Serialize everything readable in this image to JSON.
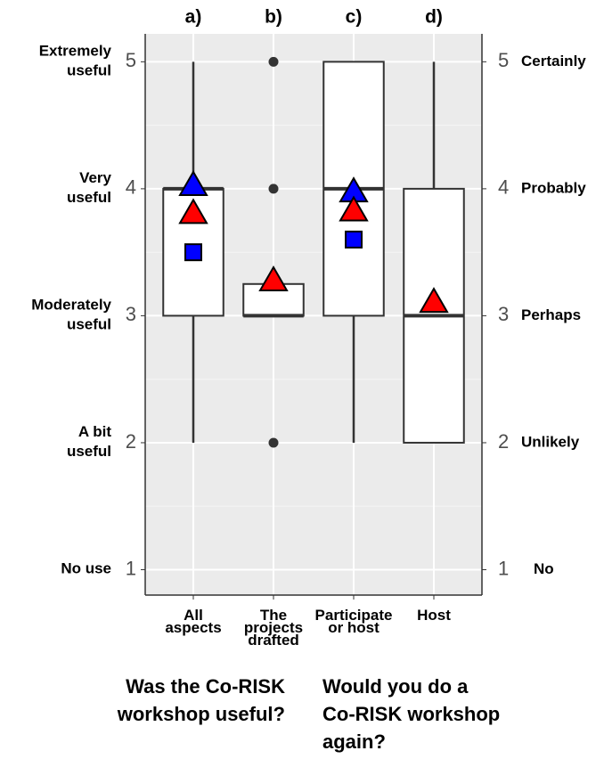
{
  "chart_data": {
    "type": "box",
    "panel_labels": [
      "a)",
      "b)",
      "c)",
      "d)"
    ],
    "categories": [
      [
        "All",
        "aspects"
      ],
      [
        "The",
        "projects",
        "drafted"
      ],
      [
        "Participate",
        "or host"
      ],
      [
        "Host"
      ]
    ],
    "boxes": [
      {
        "min": 2,
        "q1": 3,
        "median": 4,
        "q3": 4,
        "max": 5
      },
      {
        "min": 3,
        "q1": 3,
        "median": 3,
        "q3": 3.25,
        "max": 3.25
      },
      {
        "min": 2,
        "q1": 3,
        "median": 4,
        "q3": 5,
        "max": 5
      },
      {
        "min": 2,
        "q1": 2,
        "median": 3,
        "q3": 4,
        "max": 5
      }
    ],
    "outliers": [
      [],
      [
        5,
        4,
        2
      ],
      [],
      []
    ],
    "markers": [
      {
        "shape": "triangle",
        "color": "#0000ff",
        "values": [
          4.02,
          null,
          3.97,
          null
        ]
      },
      {
        "shape": "triangle",
        "color": "#ff0000",
        "values": [
          3.8,
          3.27,
          3.82,
          3.1
        ]
      },
      {
        "shape": "square",
        "color": "#0000ff",
        "values": [
          3.5,
          null,
          3.6,
          null
        ]
      }
    ],
    "ylim": [
      0.8,
      5.22
    ],
    "yticks": [
      1,
      2,
      3,
      4,
      5
    ],
    "minor_yticks": [
      1.5,
      2.5,
      3.5,
      4.5
    ],
    "y_labels": [
      [
        "No use"
      ],
      [
        "A bit",
        "useful"
      ],
      [
        "Moderately",
        "useful"
      ],
      [
        "Very",
        "useful"
      ],
      [
        "Extremely",
        "useful"
      ]
    ],
    "y2lim": [
      0.8,
      5.22
    ],
    "y2ticks": [
      1,
      2,
      3,
      4,
      5
    ],
    "y2_labels": [
      "No",
      "Unlikely",
      "Perhaps",
      "Probably",
      "Certainly"
    ],
    "captions": [
      [
        "Was the Co-RISK",
        "workshop useful?"
      ],
      [
        "Would you do a",
        "Co-RISK workshop",
        "again?"
      ]
    ],
    "grid": true
  }
}
